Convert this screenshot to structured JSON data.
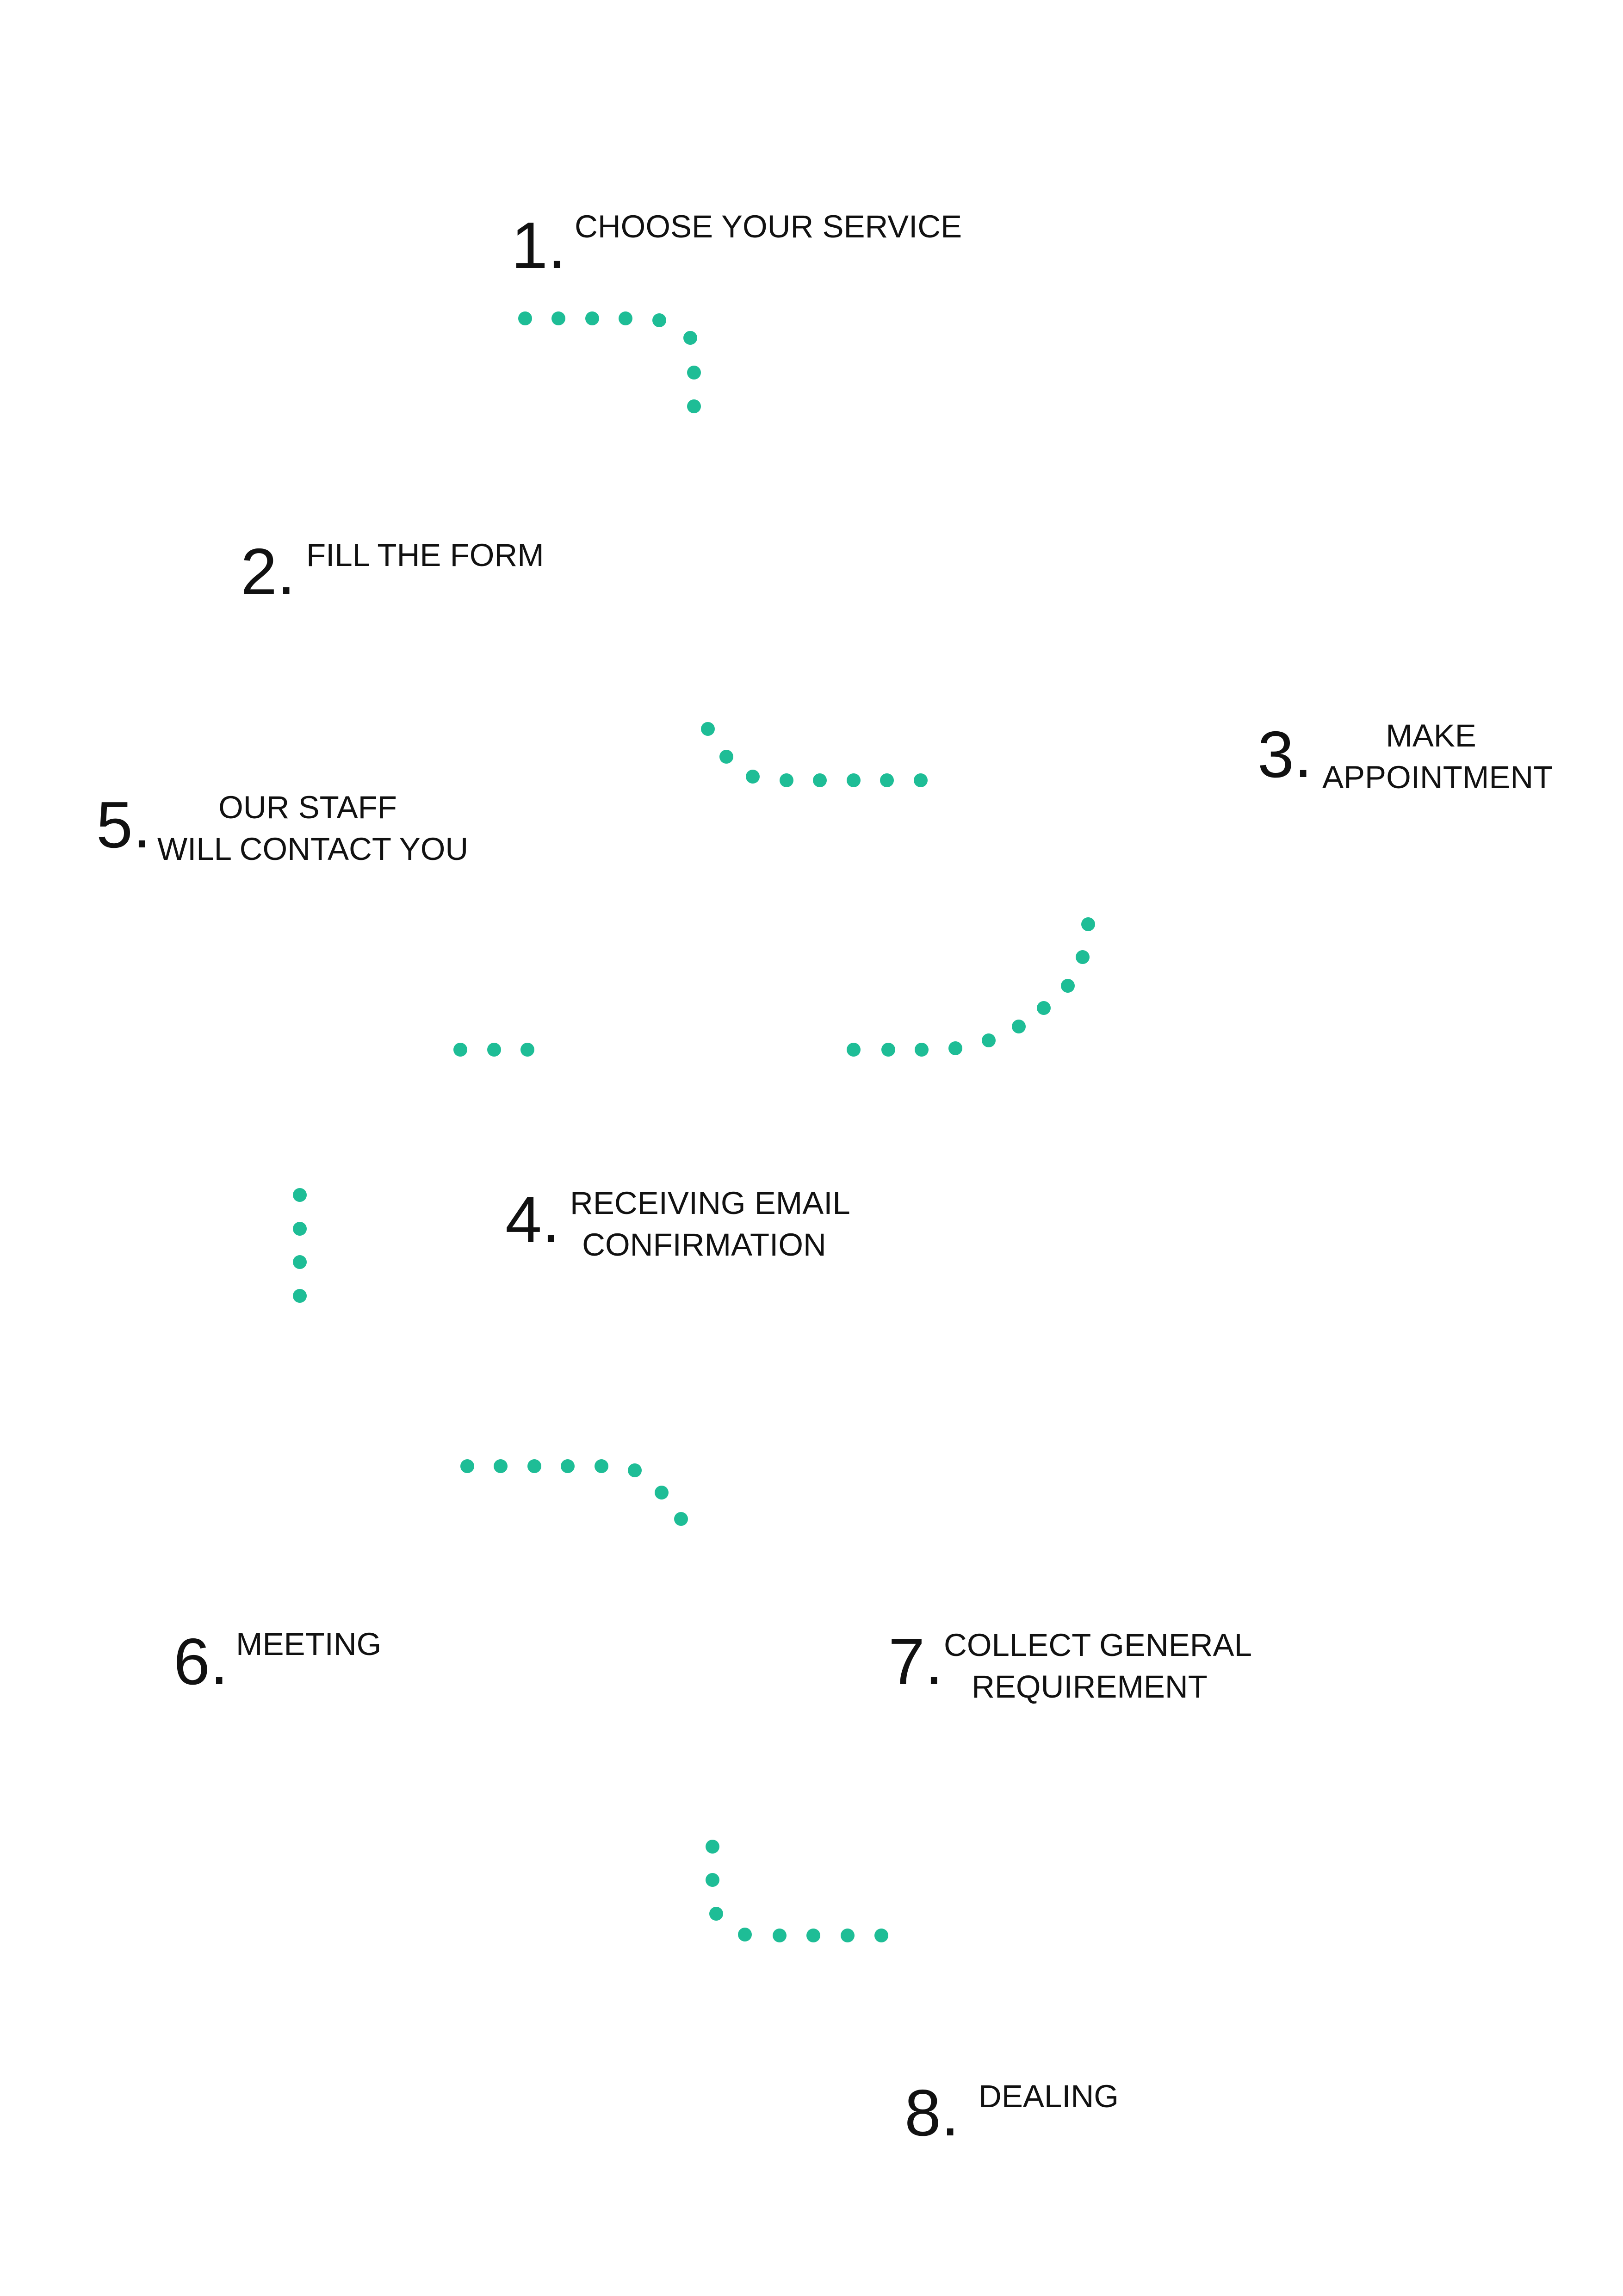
{
  "colors": {
    "accent": "#1ebd96",
    "text": "#111111",
    "background": "#ffffff"
  },
  "steps": [
    {
      "number": "1.",
      "lines": [
        "CHOOSE YOUR SERVICE"
      ]
    },
    {
      "number": "2.",
      "lines": [
        "FILL THE FORM"
      ]
    },
    {
      "number": "3.",
      "lines": [
        "MAKE",
        "APPOINTMENT"
      ]
    },
    {
      "number": "4.",
      "lines": [
        "RECEIVING EMAIL",
        "CONFIRMATION"
      ]
    },
    {
      "number": "5.",
      "lines": [
        "OUR STAFF",
        "WILL CONTACT YOU"
      ]
    },
    {
      "number": "6.",
      "lines": [
        "MEETING"
      ]
    },
    {
      "number": "7.",
      "lines": [
        "COLLECT GENERAL",
        "REQUIREMENT"
      ]
    },
    {
      "number": "8.",
      "lines": [
        "DEALING"
      ]
    }
  ]
}
